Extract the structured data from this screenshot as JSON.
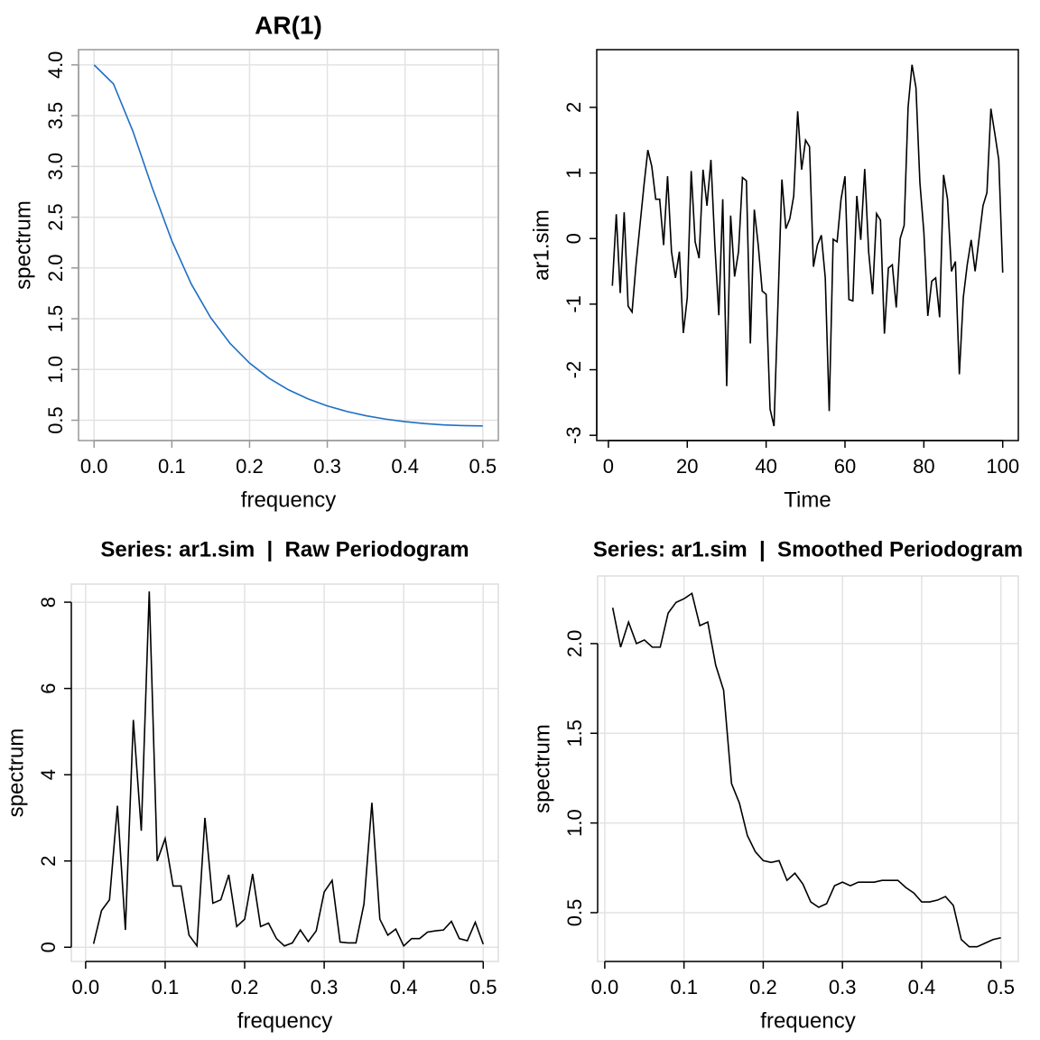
{
  "chart_data": [
    {
      "type": "line",
      "title": "AR(1)",
      "xlabel": "frequency",
      "ylabel": "spectrum",
      "color": "#1f6fc5",
      "grid": true,
      "box_color": "#999999",
      "axis_color": "#999999",
      "x": [
        0,
        0.025,
        0.05,
        0.075,
        0.1,
        0.125,
        0.15,
        0.175,
        0.2,
        0.225,
        0.25,
        0.275,
        0.3,
        0.325,
        0.35,
        0.375,
        0.4,
        0.425,
        0.45,
        0.475,
        0.5
      ],
      "values": [
        4,
        3.812,
        3.345,
        2.785,
        2.268,
        1.842,
        1.51,
        1.256,
        1.063,
        0.914,
        0.8,
        0.711,
        0.641,
        0.587,
        0.544,
        0.511,
        0.486,
        0.467,
        0.454,
        0.447,
        0.444
      ],
      "xlim": [
        -0.02,
        0.52
      ],
      "ylim": [
        0.3,
        4.15
      ],
      "xticks": [
        {
          "value": 0,
          "label": "0.0"
        },
        0.1,
        0.2,
        0.3,
        0.4,
        0.5
      ],
      "yticks": [
        0.5,
        {
          "value": 1,
          "label": "1.0"
        },
        1.5,
        {
          "value": 2,
          "label": "2.0"
        },
        2.5,
        {
          "value": 3,
          "label": "3.0"
        },
        3.5,
        {
          "value": 4,
          "label": "4.0"
        }
      ]
    },
    {
      "type": "line",
      "xlabel": "Time",
      "ylabel": "ar1.sim",
      "color": "#000000",
      "grid": false,
      "box_color": "#000000",
      "axis_color": "#000000",
      "x": [
        1,
        2,
        3,
        4,
        5,
        6,
        7,
        8,
        9,
        10,
        11,
        12,
        13,
        14,
        15,
        16,
        17,
        18,
        19,
        20,
        21,
        22,
        23,
        24,
        25,
        26,
        27,
        28,
        29,
        30,
        31,
        32,
        33,
        34,
        35,
        36,
        37,
        38,
        39,
        40,
        41,
        42,
        43,
        44,
        45,
        46,
        47,
        48,
        49,
        50,
        51,
        52,
        53,
        54,
        55,
        56,
        57,
        58,
        59,
        60,
        61,
        62,
        63,
        64,
        65,
        66,
        67,
        68,
        69,
        70,
        71,
        72,
        73,
        74,
        75,
        76,
        77,
        78,
        79,
        80,
        81,
        82,
        83,
        84,
        85,
        86,
        87,
        88,
        89,
        90,
        91,
        92,
        93,
        94,
        95,
        96,
        97,
        98,
        99,
        100
      ],
      "values": [
        -0.72,
        0.37,
        -0.83,
        0.4,
        -1.03,
        -1.12,
        -0.4,
        0.2,
        0.8,
        1.35,
        1.1,
        0.6,
        0.6,
        -0.1,
        0.95,
        -0.2,
        -0.6,
        -0.2,
        -1.44,
        -0.9,
        1.03,
        -0.05,
        -0.3,
        1.05,
        0.5,
        1.2,
        -0.1,
        -1.17,
        0.6,
        -2.25,
        0.35,
        -0.58,
        -0.2,
        0.93,
        0.88,
        -1.6,
        0.44,
        -0.1,
        -0.8,
        -0.85,
        -2.6,
        -2.86,
        -1.0,
        0.9,
        0.15,
        0.3,
        0.65,
        1.94,
        1.05,
        1.5,
        1.4,
        -0.43,
        -0.1,
        0.05,
        -0.6,
        -2.63,
        -0.01,
        -0.05,
        0.6,
        0.95,
        -0.93,
        -0.95,
        0.65,
        -0.02,
        1.06,
        -0.2,
        -0.85,
        0.38,
        0.28,
        -1.45,
        -0.45,
        -0.4,
        -1.05,
        0.0,
        0.2,
        2.0,
        2.65,
        2.3,
        0.85,
        0.1,
        -1.18,
        -0.65,
        -0.6,
        -1.2,
        0.97,
        0.6,
        -0.5,
        -0.35,
        -2.07,
        -0.9,
        -0.4,
        -0.02,
        -0.5,
        0.0,
        0.5,
        0.7,
        1.98,
        1.6,
        1.2,
        -0.52
      ],
      "xlim": [
        -2.96,
        103.96
      ],
      "ylim": [
        -3.08,
        2.88
      ],
      "xticks": [
        0,
        20,
        40,
        60,
        80,
        100
      ],
      "yticks": [
        -3,
        -2,
        -1,
        0,
        1,
        2
      ]
    },
    {
      "type": "line",
      "title": "Series: ar1.sim  |  Raw Periodogram",
      "xlabel": "frequency",
      "ylabel": "spectrum",
      "color": "#000000",
      "grid": true,
      "box_color": "#dddddd",
      "axis_color": "#000000",
      "x": [
        0.01,
        0.02,
        0.03,
        0.04,
        0.05,
        0.06,
        0.07,
        0.08,
        0.09,
        0.1,
        0.11,
        0.12,
        0.13,
        0.14,
        0.15,
        0.16,
        0.17,
        0.18,
        0.19,
        0.2,
        0.21,
        0.22,
        0.23,
        0.24,
        0.25,
        0.26,
        0.27,
        0.28,
        0.29,
        0.3,
        0.31,
        0.32,
        0.33,
        0.34,
        0.35,
        0.36,
        0.37,
        0.38,
        0.39,
        0.4,
        0.41,
        0.42,
        0.43,
        0.44,
        0.45,
        0.46,
        0.47,
        0.48,
        0.49,
        0.5
      ],
      "values": [
        0.08,
        0.85,
        1.1,
        3.28,
        0.4,
        5.27,
        2.7,
        8.25,
        2.0,
        2.52,
        1.42,
        1.42,
        0.28,
        0.03,
        3.0,
        1.02,
        1.1,
        1.68,
        0.48,
        0.65,
        1.7,
        0.48,
        0.56,
        0.2,
        0.03,
        0.1,
        0.4,
        0.13,
        0.38,
        1.28,
        1.55,
        0.12,
        0.1,
        0.1,
        1.0,
        3.35,
        0.65,
        0.28,
        0.42,
        0.03,
        0.2,
        0.2,
        0.35,
        0.38,
        0.4,
        0.6,
        0.2,
        0.15,
        0.58,
        0.07
      ],
      "xlim": [
        -0.018,
        0.519
      ],
      "ylim": [
        -0.33,
        8.42
      ],
      "xticks": [
        {
          "value": 0,
          "label": "0.0"
        },
        0.1,
        0.2,
        0.3,
        0.4,
        0.5
      ],
      "yticks": [
        0,
        2,
        4,
        6,
        8
      ]
    },
    {
      "type": "line",
      "title": "Series: ar1.sim  |  Smoothed Periodogram",
      "xlabel": "frequency",
      "ylabel": "spectrum",
      "color": "#000000",
      "grid": true,
      "box_color": "#dddddd",
      "axis_color": "#000000",
      "x": [
        0.01,
        0.02,
        0.03,
        0.04,
        0.05,
        0.06,
        0.07,
        0.08,
        0.09,
        0.1,
        0.11,
        0.12,
        0.13,
        0.14,
        0.15,
        0.16,
        0.17,
        0.18,
        0.19,
        0.2,
        0.21,
        0.22,
        0.23,
        0.24,
        0.25,
        0.26,
        0.27,
        0.28,
        0.29,
        0.3,
        0.31,
        0.32,
        0.33,
        0.34,
        0.35,
        0.36,
        0.37,
        0.38,
        0.39,
        0.4,
        0.41,
        0.42,
        0.43,
        0.44,
        0.45,
        0.46,
        0.47,
        0.48,
        0.49,
        0.5
      ],
      "values": [
        2.2,
        1.98,
        2.12,
        2.0,
        2.02,
        1.98,
        1.98,
        2.17,
        2.23,
        2.25,
        2.28,
        2.1,
        2.12,
        1.88,
        1.74,
        1.22,
        1.11,
        0.93,
        0.84,
        0.79,
        0.78,
        0.79,
        0.68,
        0.72,
        0.66,
        0.56,
        0.53,
        0.55,
        0.65,
        0.67,
        0.65,
        0.67,
        0.67,
        0.67,
        0.68,
        0.68,
        0.68,
        0.64,
        0.61,
        0.56,
        0.56,
        0.57,
        0.59,
        0.54,
        0.35,
        0.31,
        0.31,
        0.33,
        0.35,
        0.36
      ],
      "xlim": [
        -0.009,
        0.522
      ],
      "ylim": [
        0.228,
        2.377
      ],
      "xticks": [
        {
          "value": 0,
          "label": "0.0"
        },
        0.1,
        0.2,
        0.3,
        0.4,
        0.5
      ],
      "yticks": [
        0.5,
        {
          "value": 1,
          "label": "1.0"
        },
        1.5,
        {
          "value": 2,
          "label": "2.0"
        }
      ]
    }
  ]
}
